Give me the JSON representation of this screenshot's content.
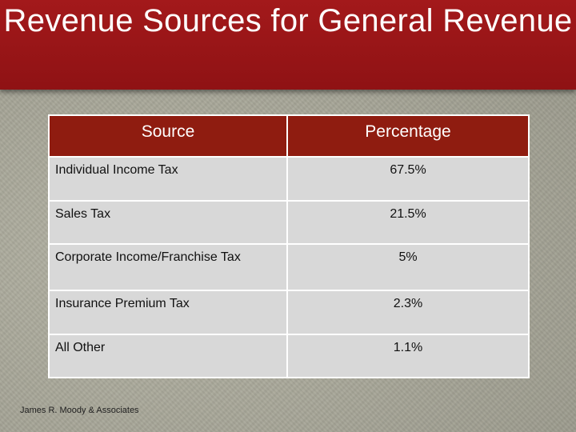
{
  "slide": {
    "title": "Revenue Sources for General Revenue"
  },
  "table": {
    "headers": {
      "source": "Source",
      "percentage": "Percentage"
    },
    "rows": [
      {
        "source": "Individual Income Tax",
        "percentage": "67.5%"
      },
      {
        "source": "Sales Tax",
        "percentage": "21.5%"
      },
      {
        "source": "Corporate Income/Franchise Tax",
        "percentage": "5%"
      },
      {
        "source": "Insurance Premium Tax",
        "percentage": "2.3%"
      },
      {
        "source": "All Other",
        "percentage": "1.1%"
      }
    ]
  },
  "footer": {
    "credit": "James R. Moody & Associates"
  },
  "colors": {
    "title_bar": "#a3191b",
    "header_cells": "#8f1c10",
    "data_cells": "#d8d8d8",
    "background": "#a9a89a"
  }
}
